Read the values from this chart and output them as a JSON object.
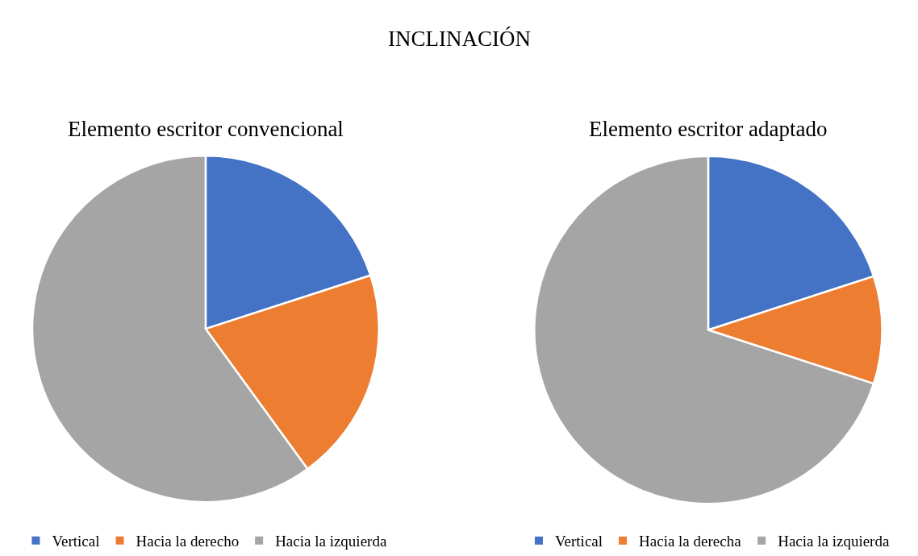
{
  "chart_data": [
    {
      "type": "pie",
      "title": "INCLINACIÓN",
      "subtitle": "Elemento escritor convencional",
      "categories": [
        "Vertical",
        "Hacia la derecho",
        "Hacia la izquierda"
      ],
      "values": [
        20,
        20,
        60
      ],
      "colors": [
        "#4472c4",
        "#ed7d31",
        "#a5a5a5"
      ],
      "legend": "bottom"
    },
    {
      "type": "pie",
      "title": "Elemento escritor adaptado",
      "categories": [
        "Vertical",
        "Hacia la derecha",
        "Hacia la izquierda"
      ],
      "values": [
        20,
        10,
        70
      ],
      "colors": [
        "#4472c4",
        "#ed7d31",
        "#a5a5a5"
      ],
      "legend": "bottom"
    }
  ]
}
